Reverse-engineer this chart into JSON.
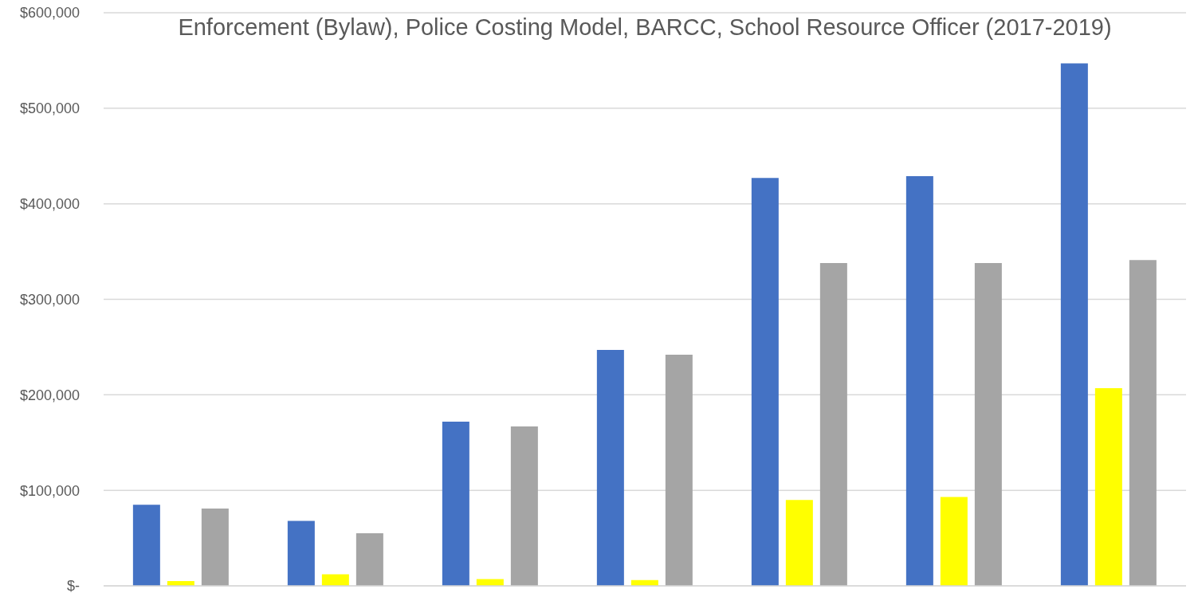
{
  "chart_data": {
    "type": "bar",
    "title": "Enforcement (Bylaw), Police Costing Model, BARCC, School Resource Officer (2017-2019)",
    "categories": [
      null,
      null,
      null,
      null,
      null,
      null,
      null
    ],
    "series": [
      {
        "color": "#4472c4",
        "values": [
          85000,
          68000,
          172000,
          247000,
          427000,
          429000,
          547000
        ]
      },
      {
        "color": "#ffff00",
        "values": [
          5000,
          12000,
          7000,
          6000,
          90000,
          93000,
          207000
        ]
      },
      {
        "color": "#a5a5a5",
        "values": [
          81000,
          55000,
          167000,
          242000,
          338000,
          338000,
          341000
        ]
      }
    ],
    "ylim": [
      0,
      600000
    ],
    "yticks": [
      {
        "value": 0,
        "label": "$-"
      },
      {
        "value": 100000,
        "label": "$100,000"
      },
      {
        "value": 200000,
        "label": "$200,000"
      },
      {
        "value": 300000,
        "label": "$300,000"
      },
      {
        "value": 400000,
        "label": "$400,000"
      },
      {
        "value": 500000,
        "label": "$500,000"
      },
      {
        "value": 600000,
        "label": "$600,000"
      }
    ],
    "tick_labels": "y",
    "grid": "y"
  }
}
